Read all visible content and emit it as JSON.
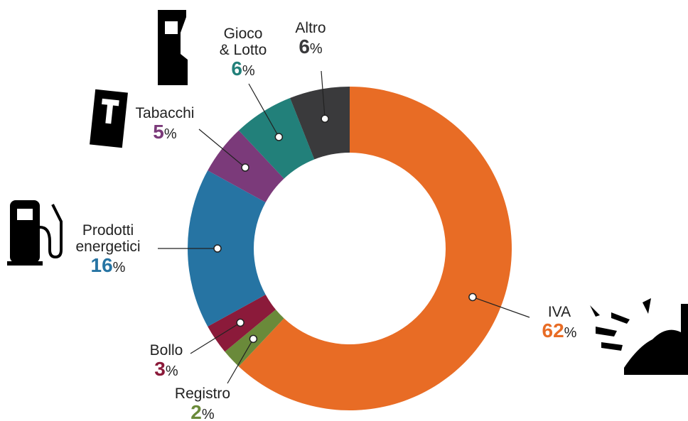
{
  "chart_data": {
    "type": "donut",
    "categories": [
      "IVA",
      "Registro",
      "Bollo",
      "Prodotti\nenergetici",
      "Tabacchi",
      "Gioco\n& Lotto",
      "Altro"
    ],
    "values": [
      62,
      2,
      3,
      16,
      5,
      6,
      6
    ],
    "unit": "%",
    "colors": [
      "#e86c25",
      "#6a8a3a",
      "#8b1a3a",
      "#2674a3",
      "#7b3a7a",
      "#22807a",
      "#3a3a3c"
    ]
  }
}
